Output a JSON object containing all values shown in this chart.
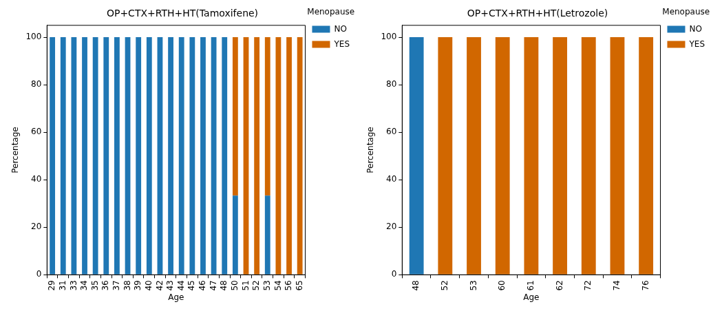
{
  "chart_data": [
    {
      "type": "bar",
      "title": "OP+CTX+RTH+HT(Tamoxifene)",
      "xlabel": "Age",
      "ylabel": "Percentage",
      "legend_title": "Menopause",
      "stacked": true,
      "legend": "top right",
      "grid": false,
      "ylim": [
        0,
        105
      ],
      "yticks": [
        0,
        20,
        40,
        60,
        80,
        100
      ],
      "categories": [
        "29",
        "31",
        "33",
        "34",
        "35",
        "36",
        "37",
        "38",
        "39",
        "40",
        "42",
        "43",
        "44",
        "45",
        "46",
        "47",
        "48",
        "50",
        "51",
        "52",
        "53",
        "54",
        "56",
        "65"
      ],
      "series": [
        {
          "name": "NO",
          "color": "#1f77b4",
          "values": [
            100,
            100,
            100,
            100,
            100,
            100,
            100,
            100,
            100,
            100,
            100,
            100,
            100,
            100,
            100,
            100,
            100,
            33.3,
            0,
            0,
            33.3,
            0,
            0,
            0
          ]
        },
        {
          "name": "YES",
          "color": "#d16700",
          "values": [
            0,
            0,
            0,
            0,
            0,
            0,
            0,
            0,
            0,
            0,
            0,
            0,
            0,
            0,
            0,
            0,
            0,
            66.7,
            100,
            100,
            66.7,
            100,
            100,
            100
          ]
        }
      ]
    },
    {
      "type": "bar",
      "title": "OP+CTX+RTH+HT(Letrozole)",
      "xlabel": "Age",
      "ylabel": "Percentage",
      "legend_title": "Menopause",
      "stacked": true,
      "legend": "top right",
      "grid": false,
      "ylim": [
        0,
        105
      ],
      "yticks": [
        0,
        20,
        40,
        60,
        80,
        100
      ],
      "categories": [
        "48",
        "52",
        "53",
        "60",
        "61",
        "62",
        "72",
        "74",
        "76"
      ],
      "series": [
        {
          "name": "NO",
          "color": "#1f77b4",
          "values": [
            100,
            0,
            0,
            0,
            0,
            0,
            0,
            0,
            0
          ]
        },
        {
          "name": "YES",
          "color": "#d16700",
          "values": [
            0,
            100,
            100,
            100,
            100,
            100,
            100,
            100,
            100
          ]
        }
      ]
    }
  ]
}
